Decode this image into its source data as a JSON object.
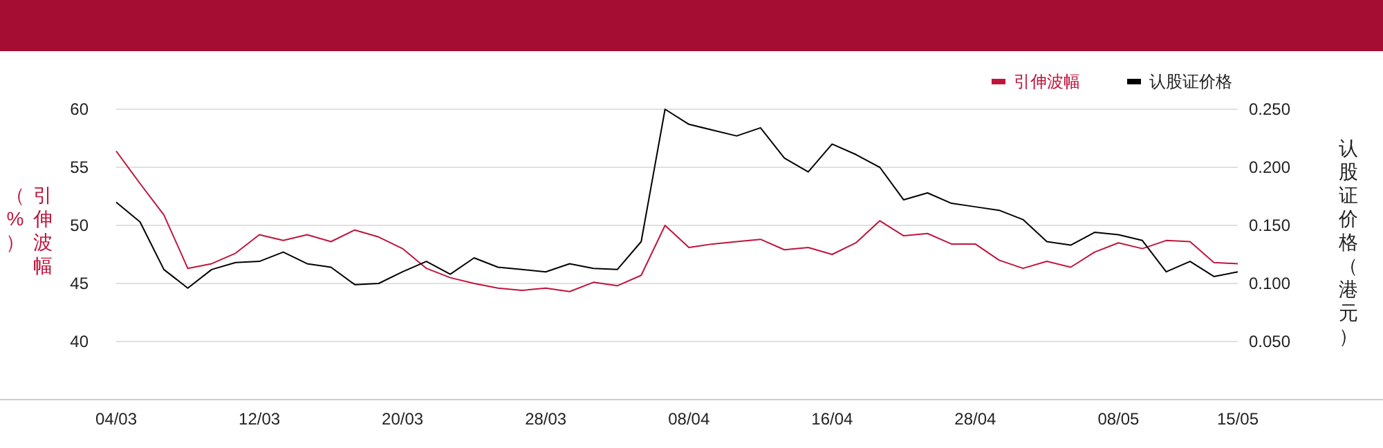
{
  "chart_data": {
    "type": "line",
    "categories": [
      "04/03",
      null,
      null,
      null,
      null,
      null,
      "12/03",
      null,
      null,
      null,
      null,
      null,
      "20/03",
      null,
      null,
      null,
      null,
      null,
      "28/03",
      null,
      null,
      null,
      null,
      null,
      "08/04",
      null,
      null,
      null,
      null,
      null,
      "16/04",
      null,
      null,
      null,
      null,
      null,
      "28/04",
      null,
      null,
      null,
      null,
      null,
      "08/05",
      null,
      null,
      null,
      null,
      "15/05"
    ],
    "series": [
      {
        "name": "引伸波幅",
        "color": "#c0143c",
        "values": [
          56.4,
          53.6,
          50.9,
          46.3,
          46.7,
          47.6,
          49.2,
          48.7,
          49.2,
          48.6,
          49.6,
          49.0,
          48.0,
          46.3,
          45.5,
          45.0,
          44.6,
          44.4,
          44.6,
          44.3,
          45.1,
          44.8,
          45.7,
          50.0,
          48.1,
          48.4,
          48.6,
          48.8,
          47.9,
          48.1,
          47.5,
          48.5,
          50.4,
          49.1,
          49.3,
          48.4,
          48.4,
          47.0,
          46.3,
          46.9,
          46.4,
          47.7,
          48.5,
          48.0,
          48.7,
          48.6,
          46.8,
          46.7
        ]
      },
      {
        "name": "认股证价格",
        "color": "#000000",
        "axis": "y2",
        "values": [
          0.17,
          0.153,
          0.112,
          0.096,
          0.112,
          0.118,
          0.119,
          0.127,
          0.117,
          0.114,
          0.099,
          0.1,
          0.11,
          0.119,
          0.108,
          0.122,
          0.114,
          0.112,
          0.11,
          0.117,
          0.113,
          0.112,
          0.136,
          0.25,
          0.237,
          0.232,
          0.227,
          0.234,
          0.208,
          0.196,
          0.22,
          0.211,
          0.2,
          0.172,
          0.178,
          0.169,
          0.166,
          0.163,
          0.155,
          0.136,
          0.133,
          0.144,
          0.142,
          0.137,
          0.11,
          0.119,
          0.106,
          0.11
        ]
      }
    ],
    "ylabel": "引伸波幅（%）",
    "y2label": "认股证价格（港元）",
    "ylim": [
      35,
      60
    ],
    "yticks": [
      40,
      45,
      50,
      55,
      60
    ],
    "y2lim": [
      0,
      0.25
    ],
    "y2ticks": [
      {
        "value": 0.05,
        "label": "0.050"
      },
      {
        "value": 0.1,
        "label": "0.100"
      },
      {
        "value": 0.15,
        "label": "0.150"
      },
      {
        "value": 0.2,
        "label": "0.200"
      },
      {
        "value": 0.25,
        "label": "0.250"
      }
    ],
    "grid": "y",
    "legend": "top right"
  }
}
